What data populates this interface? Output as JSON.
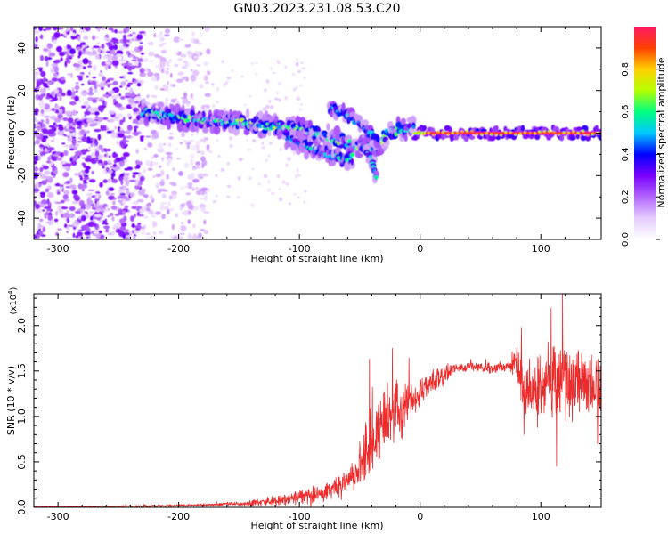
{
  "figure": {
    "title": "GN03.2023.231.08.53.C20"
  },
  "chart_data": [
    {
      "type": "heatmap",
      "xlabel": "Height of straight line (km)",
      "ylabel": "Frequency (Hz)",
      "xlim": [
        -320,
        150
      ],
      "ylim": [
        -50,
        50
      ],
      "xticks": [
        -300,
        -200,
        -100,
        0,
        100
      ],
      "yticks": [
        -40,
        -20,
        0,
        20,
        40
      ],
      "colorbar": {
        "label": "Normalized spectral amplitude",
        "range": [
          0,
          1
        ],
        "ticks": [
          "0.0",
          "0.2",
          "0.4",
          "0.6",
          "0.8"
        ],
        "tick_values": [
          0,
          0.2,
          0.4,
          0.6,
          0.8
        ]
      },
      "colormap": [
        "#ffffff",
        "#e6ccff",
        "#b266ff",
        "#7a00ff",
        "#0000ff",
        "#00c8ff",
        "#00ff80",
        "#b4ff00",
        "#ffd000",
        "#ff4000",
        "#ff1a66"
      ],
      "features": {
        "broadband_noise_x_range": [
          -320,
          -175
        ],
        "dense_noise_x_range": [
          -320,
          -230
        ],
        "main_trace": [
          [
            -230,
            10
          ],
          [
            -200,
            7
          ],
          [
            -150,
            5
          ],
          [
            -100,
            2
          ],
          [
            -75,
            -2
          ],
          [
            -55,
            -6
          ],
          [
            -45,
            -6
          ],
          [
            -35,
            -8
          ],
          [
            -28,
            0
          ],
          [
            -10,
            2
          ],
          [
            0,
            1
          ],
          [
            20,
            0
          ],
          [
            150,
            0
          ]
        ],
        "branch_trace": [
          [
            -110,
            -2
          ],
          [
            -90,
            -7
          ],
          [
            -75,
            -10
          ],
          [
            -65,
            -13
          ],
          [
            -55,
            -11
          ]
        ],
        "upper_branch": [
          [
            -75,
            12
          ],
          [
            -65,
            10
          ],
          [
            -55,
            6
          ],
          [
            -45,
            2
          ],
          [
            -35,
            -4
          ]
        ],
        "low_dip": [
          [
            -50,
            -5
          ],
          [
            -42,
            -10
          ],
          [
            -38,
            -18
          ],
          [
            -36,
            -22
          ]
        ],
        "flat_line_x_range": [
          0,
          150
        ],
        "flat_line_frequency": 0
      }
    },
    {
      "type": "line",
      "xlabel": "Height of straight line (km)",
      "ylabel": "SNR (10 * v/v)",
      "y_scale_label": "(x10",
      "y_scale_exp": "4",
      "y_scale_suffix": ")",
      "xlim": [
        -320,
        150
      ],
      "ylim": [
        0,
        2.35
      ],
      "xticks": [
        -300,
        -200,
        -100,
        0,
        100
      ],
      "yticks": [
        "0.0",
        "0.5",
        "1.0",
        "1.5",
        "2.0"
      ],
      "ytick_values": [
        0,
        0.5,
        1.0,
        1.5,
        2.0
      ],
      "color": "#ee2b2b",
      "envelope": {
        "x": [
          -320,
          -250,
          -200,
          -170,
          -150,
          -130,
          -110,
          -95,
          -80,
          -60,
          -45,
          -35,
          -25,
          -10,
          0,
          10,
          20,
          30,
          40,
          60,
          80,
          85,
          95,
          105,
          115,
          125,
          135,
          150
        ],
        "y": [
          0.005,
          0.01,
          0.02,
          0.03,
          0.04,
          0.06,
          0.09,
          0.12,
          0.16,
          0.28,
          0.55,
          0.85,
          1.0,
          1.15,
          1.25,
          1.38,
          1.48,
          1.53,
          1.55,
          1.53,
          1.56,
          1.35,
          1.3,
          1.42,
          1.4,
          1.35,
          1.4,
          1.35
        ]
      },
      "noise_amplitude": {
        "x": [
          -320,
          -150,
          -100,
          -60,
          -40,
          -20,
          0,
          20,
          30,
          75,
          85,
          150
        ],
        "y": [
          0.005,
          0.02,
          0.08,
          0.12,
          0.35,
          0.35,
          0.15,
          0.12,
          0.05,
          0.06,
          0.4,
          0.4
        ]
      },
      "peaks": [
        {
          "x": -23,
          "y": 1.75
        },
        {
          "x": -42,
          "y": 1.63
        },
        {
          "x": 84,
          "y": 1.98
        },
        {
          "x": 118,
          "y": 2.35
        },
        {
          "x": 113,
          "y": 0.45
        },
        {
          "x": 86,
          "y": 0.8
        },
        {
          "x": 147,
          "y": 0.7
        }
      ]
    }
  ]
}
